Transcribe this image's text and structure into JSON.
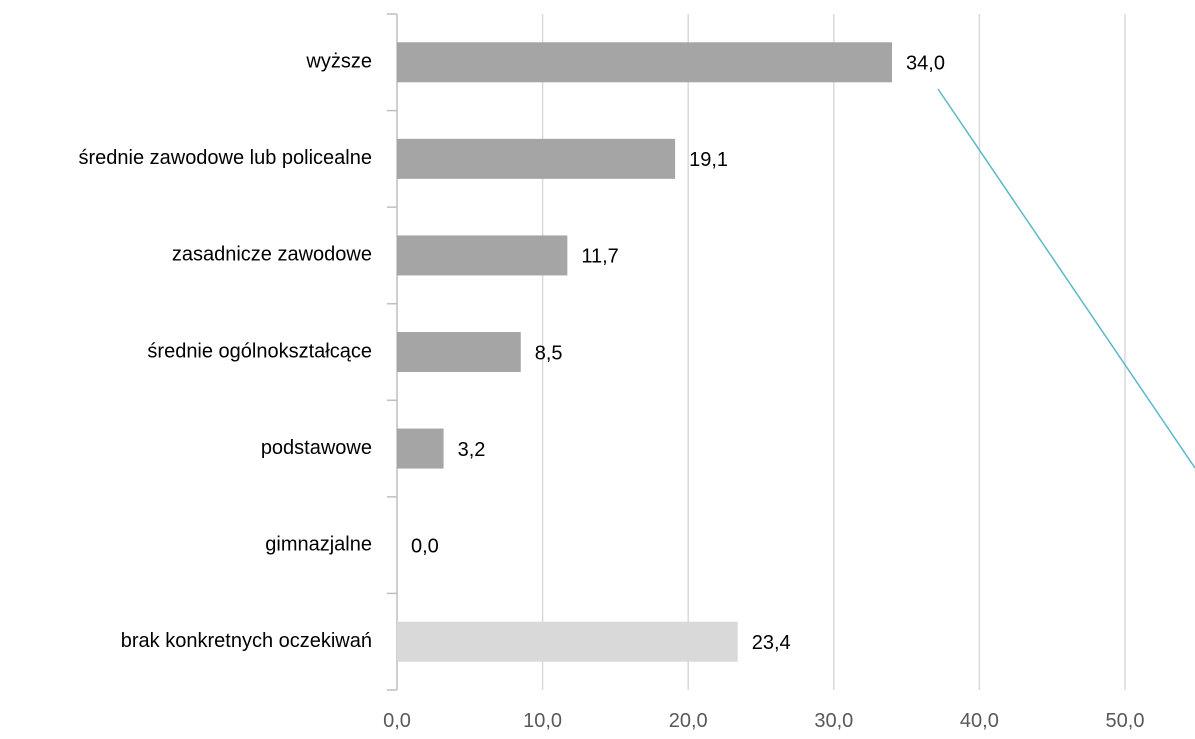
{
  "chart_data": {
    "type": "bar",
    "orientation": "horizontal",
    "categories": [
      "wyższe",
      "średnie zawodowe lub policealne",
      "zasadnicze zawodowe",
      "średnie ogólnokształcące",
      "podstawowe",
      "gimnazjalne",
      "brak konkretnych oczekiwań"
    ],
    "values": [
      34.0,
      19.1,
      11.7,
      8.5,
      3.2,
      0.0,
      23.4
    ],
    "value_labels": [
      "34,0",
      "19,1",
      "11,7",
      "8,5",
      "3,2",
      "0,0",
      "23,4"
    ],
    "bar_colors": [
      "#a5a5a5",
      "#a5a5a5",
      "#a5a5a5",
      "#a5a5a5",
      "#a5a5a5",
      "#a5a5a5",
      "#d9d9d9"
    ],
    "xlim": [
      0,
      50
    ],
    "x_ticks": [
      0,
      10,
      20,
      30,
      40,
      50
    ],
    "x_tick_labels": [
      "0,0",
      "10,0",
      "20,0",
      "30,0",
      "40,0",
      "50,0"
    ],
    "grid": "vertical",
    "title": "",
    "xlabel": "",
    "ylabel": "",
    "trend_line_color": "#5bb8cc"
  }
}
